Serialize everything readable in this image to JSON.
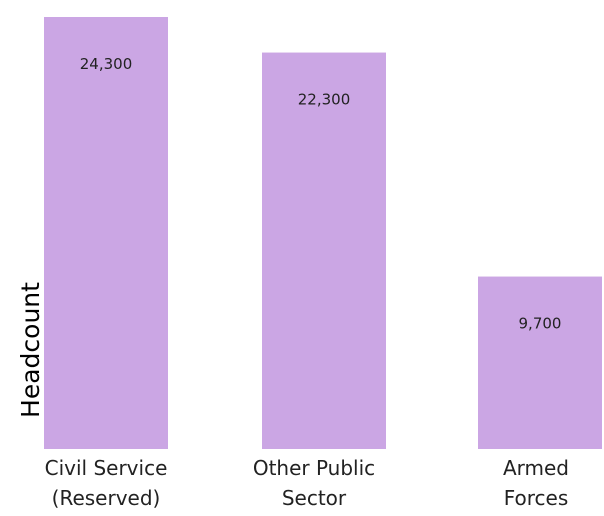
{
  "chart_data": {
    "type": "bar",
    "categories": [
      [
        "Civil Service",
        "(Reserved)"
      ],
      [
        "Other Public",
        "Sector"
      ],
      [
        "Armed",
        "Forces"
      ]
    ],
    "values": [
      24300,
      22300,
      9700
    ],
    "value_labels": [
      "24,300",
      "22,300",
      "9,700"
    ],
    "ylabel": "Headcount",
    "xlabel": "",
    "title": "",
    "ylim": [
      0,
      25000
    ],
    "grid": false,
    "legend": "none",
    "bar_color": "#cba6e4"
  }
}
